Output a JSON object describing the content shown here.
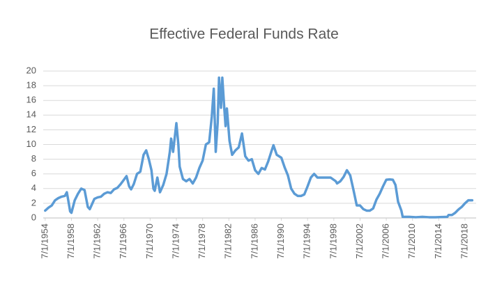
{
  "chart_data": {
    "type": "line",
    "title": "Effective Federal Funds Rate",
    "x": [
      1954.5,
      1955,
      1955.5,
      1956,
      1956.5,
      1957,
      1957.5,
      1957.8,
      1958,
      1958.3,
      1958.5,
      1959,
      1959.5,
      1960,
      1960.5,
      1961,
      1961.3,
      1961.7,
      1962,
      1962.5,
      1963,
      1963.5,
      1964,
      1964.5,
      1965,
      1965.5,
      1966,
      1966.5,
      1966.9,
      1967.3,
      1967.6,
      1968,
      1968.5,
      1969,
      1969.5,
      1969.9,
      1970.3,
      1970.7,
      1971,
      1971.2,
      1971.6,
      1972,
      1972.5,
      1973,
      1973.5,
      1973.7,
      1974,
      1974.5,
      1974.8,
      1975,
      1975.5,
      1976,
      1976.5,
      1977,
      1977.5,
      1978,
      1978.5,
      1979,
      1979.5,
      1979.9,
      1980.2,
      1980.5,
      1980.8,
      1981,
      1981.3,
      1981.5,
      1981.8,
      1982,
      1982.2,
      1982.6,
      1983,
      1983.5,
      1984,
      1984.5,
      1985,
      1985.5,
      1986,
      1986.5,
      1987,
      1987.5,
      1988,
      1988.5,
      1989,
      1989.3,
      1989.8,
      1990.5,
      1991,
      1991.5,
      1992,
      1992.5,
      1993,
      1993.5,
      1994,
      1994.5,
      1995,
      1995.5,
      1996,
      1997,
      1998,
      1998.8,
      1999,
      1999.5,
      2000,
      2000.5,
      2001,
      2001.5,
      2002,
      2002.5,
      2003,
      2003.5,
      2004,
      2004.5,
      2005,
      2005.5,
      2006,
      2006.5,
      2007,
      2007.5,
      2007.9,
      2008.3,
      2008.8,
      2009,
      2010,
      2011,
      2012,
      2013,
      2014,
      2015,
      2015.8,
      2016,
      2016.5,
      2017,
      2017.5,
      2018,
      2018.5,
      2019,
      2019.3,
      2019.6
    ],
    "values": [
      1.0,
      1.4,
      1.7,
      2.4,
      2.7,
      2.9,
      3.0,
      3.5,
      2.5,
      0.9,
      0.7,
      2.4,
      3.3,
      4.0,
      3.8,
      1.5,
      1.2,
      2.0,
      2.6,
      2.8,
      2.9,
      3.3,
      3.5,
      3.4,
      3.9,
      4.1,
      4.6,
      5.2,
      5.7,
      4.3,
      3.9,
      4.6,
      6.0,
      6.3,
      8.6,
      9.2,
      8.0,
      6.5,
      4.0,
      3.7,
      5.5,
      3.5,
      4.5,
      6.0,
      9.0,
      10.8,
      9.0,
      12.9,
      10.0,
      7.0,
      5.3,
      5.0,
      5.3,
      4.7,
      5.5,
      6.8,
      7.8,
      10.0,
      10.3,
      13.8,
      17.6,
      9.0,
      13.0,
      19.1,
      15.0,
      19.1,
      15.0,
      12.5,
      14.9,
      10.5,
      8.6,
      9.2,
      9.6,
      11.5,
      8.4,
      7.8,
      8.0,
      6.5,
      6.0,
      6.8,
      6.6,
      7.7,
      9.1,
      9.9,
      8.6,
      8.2,
      6.9,
      5.8,
      4.0,
      3.3,
      3.0,
      3.0,
      3.2,
      4.3,
      5.5,
      6.0,
      5.5,
      5.5,
      5.5,
      5.0,
      4.7,
      5.0,
      5.6,
      6.5,
      5.8,
      3.8,
      1.7,
      1.7,
      1.2,
      1.0,
      1.0,
      1.3,
      2.5,
      3.3,
      4.3,
      5.2,
      5.25,
      5.2,
      4.5,
      2.2,
      1.0,
      0.15,
      0.15,
      0.1,
      0.15,
      0.1,
      0.1,
      0.13,
      0.15,
      0.4,
      0.4,
      0.7,
      1.15,
      1.5,
      2.0,
      2.4,
      2.4,
      2.4
    ],
    "color": "#5b9bd5",
    "xlim": [
      1954.2,
      2020.2
    ],
    "xticks": [
      {
        "value": 1954.5,
        "label": "7/1/1954"
      },
      {
        "value": 1958.5,
        "label": "7/1/1958"
      },
      {
        "value": 1962.5,
        "label": "7/1/1962"
      },
      {
        "value": 1966.5,
        "label": "7/1/1966"
      },
      {
        "value": 1970.5,
        "label": "7/1/1970"
      },
      {
        "value": 1974.5,
        "label": "7/1/1974"
      },
      {
        "value": 1978.5,
        "label": "7/1/1978"
      },
      {
        "value": 1982.5,
        "label": "7/1/1982"
      },
      {
        "value": 1986.5,
        "label": "7/1/1986"
      },
      {
        "value": 1990.5,
        "label": "7/1/1990"
      },
      {
        "value": 1994.5,
        "label": "7/1/1994"
      },
      {
        "value": 1998.5,
        "label": "7/1/1998"
      },
      {
        "value": 2002.5,
        "label": "7/1/2002"
      },
      {
        "value": 2006.5,
        "label": "7/1/2006"
      },
      {
        "value": 2010.5,
        "label": "7/1/2010"
      },
      {
        "value": 2014.5,
        "label": "7/1/2014"
      },
      {
        "value": 2018.5,
        "label": "7/1/2018"
      }
    ],
    "ylim": [
      0,
      20
    ],
    "yticks": [
      0,
      2,
      4,
      6,
      8,
      10,
      12,
      14,
      16,
      18,
      20
    ],
    "grid": true
  }
}
